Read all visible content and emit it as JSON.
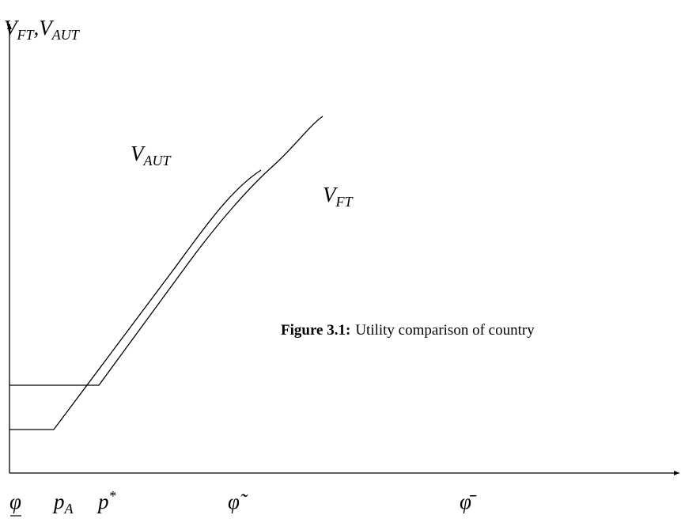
{
  "y_axis_label": {
    "first": {
      "base": "V",
      "sub": "FT"
    },
    "separator": ",",
    "second": {
      "base": "V",
      "sub": "AUT"
    }
  },
  "curves": [
    {
      "label": {
        "base": "V",
        "sub": "AUT"
      }
    },
    {
      "label": {
        "base": "V",
        "sub": "FT"
      }
    }
  ],
  "caption": {
    "label": "Figure 3.1:",
    "text": "Utility comparison of country"
  },
  "x_labels": [
    {
      "base": "φ"
    },
    {
      "base": "p",
      "sub": "A"
    },
    {
      "base": "p",
      "sup": "*"
    },
    {
      "base": "φ̃"
    },
    {
      "base": "φ̄"
    }
  ]
}
